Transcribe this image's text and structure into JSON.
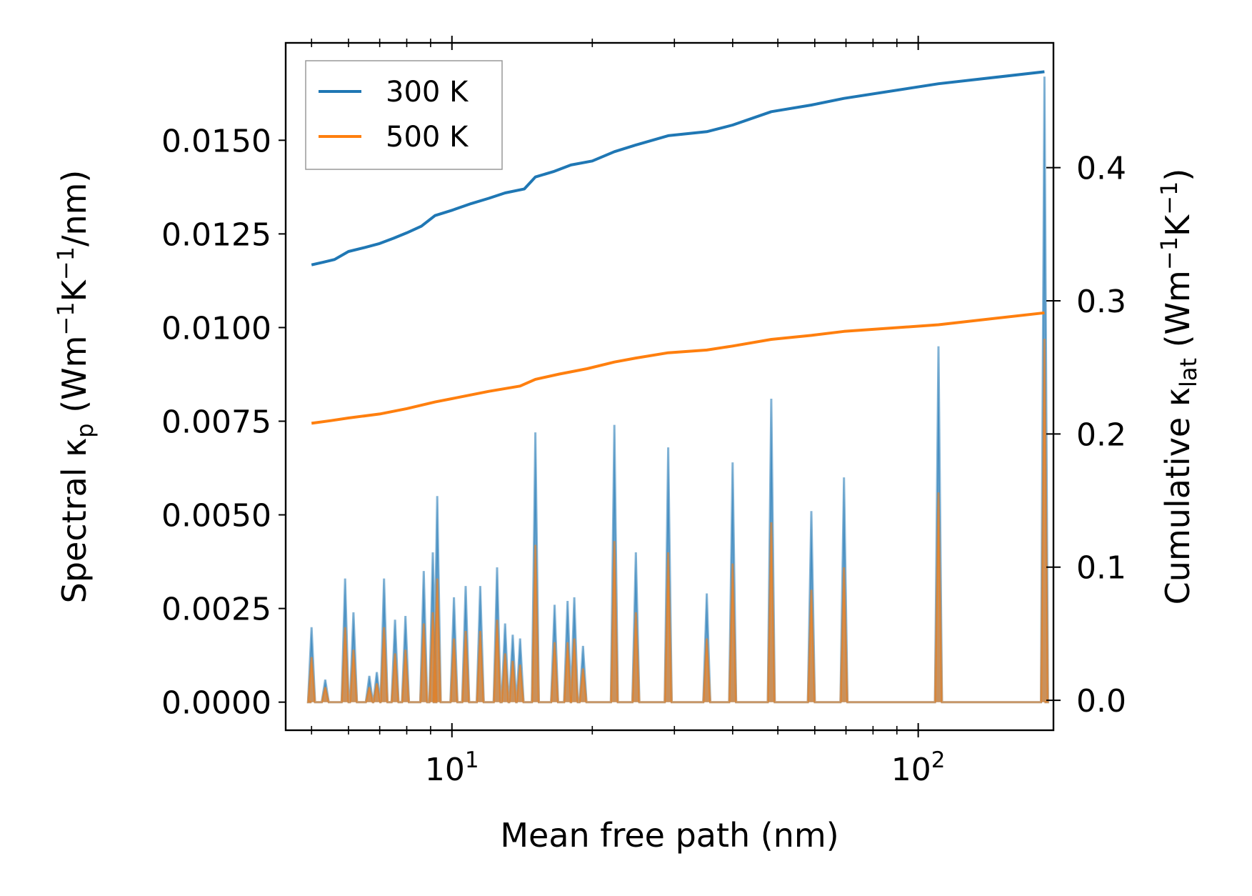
{
  "chart_data": {
    "type": "line",
    "xlabel": "Mean free path (nm)",
    "ylabel_left": {
      "pre": "Spectral κ",
      "sub": "p",
      "post_open": " (Wm",
      "sup1": "−1",
      "mid": "K",
      "sup2": "−1",
      "post": "/nm)"
    },
    "ylabel_right": {
      "pre": "Cumulative κ",
      "sub": "lat",
      "post_open": " (Wm",
      "sup1": "−1",
      "mid": "K",
      "sup2": "−1",
      "post": ")"
    },
    "x_scale": "log",
    "xlim": [
      4.4,
      195
    ],
    "x_ticks": [
      {
        "value": 10,
        "base": "10",
        "exp": "1"
      },
      {
        "value": 100,
        "base": "10",
        "exp": "2"
      }
    ],
    "ylim_left": [
      -0.00075,
      0.0176
    ],
    "y_ticks_left": [
      {
        "value": 0,
        "label": "0.0000"
      },
      {
        "value": 0.0025,
        "label": "0.0025"
      },
      {
        "value": 0.005,
        "label": "0.0050"
      },
      {
        "value": 0.0075,
        "label": "0.0075"
      },
      {
        "value": 0.01,
        "label": "0.0100"
      },
      {
        "value": 0.0125,
        "label": "0.0125"
      },
      {
        "value": 0.015,
        "label": "0.0150"
      }
    ],
    "ylim_right": [
      -0.0225,
      0.4937
    ],
    "y_ticks_right": [
      {
        "value": 0,
        "label": "0.0"
      },
      {
        "value": 0.1,
        "label": "0.1"
      },
      {
        "value": 0.2,
        "label": "0.2"
      },
      {
        "value": 0.3,
        "label": "0.3"
      },
      {
        "value": 0.4,
        "label": "0.4"
      }
    ],
    "legend": {
      "position": "upper-left",
      "entries": [
        {
          "label": "300 K",
          "color": "#1f77b4"
        },
        {
          "label": "500 K",
          "color": "#ff7f0e"
        }
      ]
    },
    "spectral_peaks": [
      {
        "x": 5.0,
        "y300": 0.002,
        "y500": 0.0012
      },
      {
        "x": 5.35,
        "y300": 0.0006,
        "y500": 0.0004
      },
      {
        "x": 5.9,
        "y300": 0.0033,
        "y500": 0.002
      },
      {
        "x": 6.15,
        "y300": 0.0024,
        "y500": 0.0014
      },
      {
        "x": 6.65,
        "y300": 0.0007,
        "y500": 0.0004
      },
      {
        "x": 6.9,
        "y300": 0.0008,
        "y500": 0.0005
      },
      {
        "x": 7.15,
        "y300": 0.0033,
        "y500": 0.002
      },
      {
        "x": 7.55,
        "y300": 0.0022,
        "y500": 0.0013
      },
      {
        "x": 7.95,
        "y300": 0.0023,
        "y500": 0.0014
      },
      {
        "x": 8.7,
        "y300": 0.0035,
        "y500": 0.0021
      },
      {
        "x": 9.1,
        "y300": 0.004,
        "y500": 0.0024
      },
      {
        "x": 9.3,
        "y300": 0.0055,
        "y500": 0.0033
      },
      {
        "x": 10.1,
        "y300": 0.0028,
        "y500": 0.0017
      },
      {
        "x": 10.7,
        "y300": 0.0031,
        "y500": 0.0019
      },
      {
        "x": 11.5,
        "y300": 0.0031,
        "y500": 0.0019
      },
      {
        "x": 12.5,
        "y300": 0.0036,
        "y500": 0.0022
      },
      {
        "x": 13.0,
        "y300": 0.0021,
        "y500": 0.0013
      },
      {
        "x": 13.5,
        "y300": 0.0018,
        "y500": 0.0011
      },
      {
        "x": 14.0,
        "y300": 0.0017,
        "y500": 0.001
      },
      {
        "x": 15.1,
        "y300": 0.0072,
        "y500": 0.0042
      },
      {
        "x": 16.6,
        "y300": 0.0026,
        "y500": 0.0016
      },
      {
        "x": 17.7,
        "y300": 0.0027,
        "y500": 0.0016
      },
      {
        "x": 18.3,
        "y300": 0.0028,
        "y500": 0.0017
      },
      {
        "x": 19.1,
        "y300": 0.0015,
        "y500": 0.0009
      },
      {
        "x": 22.3,
        "y300": 0.0074,
        "y500": 0.0043
      },
      {
        "x": 24.8,
        "y300": 0.004,
        "y500": 0.0024
      },
      {
        "x": 29.1,
        "y300": 0.0068,
        "y500": 0.004
      },
      {
        "x": 35.2,
        "y300": 0.0029,
        "y500": 0.0017
      },
      {
        "x": 40.0,
        "y300": 0.0064,
        "y500": 0.0037
      },
      {
        "x": 48.4,
        "y300": 0.0081,
        "y500": 0.0048
      },
      {
        "x": 59.0,
        "y300": 0.0051,
        "y500": 0.003
      },
      {
        "x": 69.3,
        "y300": 0.006,
        "y500": 0.0036
      },
      {
        "x": 110.5,
        "y300": 0.0095,
        "y500": 0.0056
      },
      {
        "x": 186.5,
        "y300": 0.0167,
        "y500": 0.0097
      }
    ],
    "cumulative": {
      "300K": [
        [
          5.0,
          0.327
        ],
        [
          5.3,
          0.329
        ],
        [
          5.6,
          0.331
        ],
        [
          6.0,
          0.337
        ],
        [
          6.5,
          0.34
        ],
        [
          7.0,
          0.343
        ],
        [
          7.5,
          0.347
        ],
        [
          8.0,
          0.351
        ],
        [
          8.6,
          0.356
        ],
        [
          9.2,
          0.364
        ],
        [
          10.0,
          0.368
        ],
        [
          11.0,
          0.373
        ],
        [
          12.0,
          0.377
        ],
        [
          13.0,
          0.381
        ],
        [
          14.3,
          0.384
        ],
        [
          15.1,
          0.393
        ],
        [
          16.5,
          0.397
        ],
        [
          18.0,
          0.402
        ],
        [
          20.0,
          0.405
        ],
        [
          22.3,
          0.412
        ],
        [
          24.8,
          0.417
        ],
        [
          29.1,
          0.424
        ],
        [
          35.2,
          0.427
        ],
        [
          40.0,
          0.432
        ],
        [
          48.4,
          0.442
        ],
        [
          59.0,
          0.447
        ],
        [
          69.3,
          0.452
        ],
        [
          110.5,
          0.463
        ],
        [
          186.5,
          0.472
        ]
      ],
      "500K": [
        [
          5.0,
          0.208
        ],
        [
          5.5,
          0.21
        ],
        [
          6.0,
          0.212
        ],
        [
          7.0,
          0.215
        ],
        [
          8.0,
          0.219
        ],
        [
          9.2,
          0.224
        ],
        [
          10.5,
          0.228
        ],
        [
          12.0,
          0.232
        ],
        [
          14.0,
          0.236
        ],
        [
          15.1,
          0.241
        ],
        [
          17.0,
          0.245
        ],
        [
          19.5,
          0.249
        ],
        [
          22.3,
          0.254
        ],
        [
          24.8,
          0.257
        ],
        [
          29.1,
          0.261
        ],
        [
          35.2,
          0.263
        ],
        [
          40.0,
          0.266
        ],
        [
          48.4,
          0.271
        ],
        [
          59.0,
          0.274
        ],
        [
          69.3,
          0.277
        ],
        [
          110.5,
          0.282
        ],
        [
          186.5,
          0.291
        ]
      ]
    }
  }
}
